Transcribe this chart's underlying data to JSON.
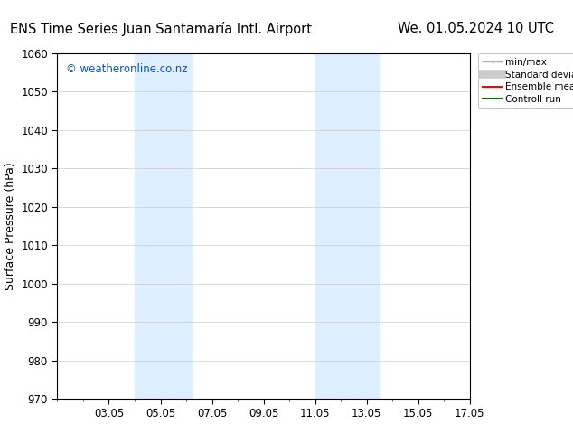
{
  "title_left": "ENS Time Series Juan Santamaría Intl. Airport",
  "title_right": "We. 01.05.2024 10 UTC",
  "ylabel": "Surface Pressure (hPa)",
  "ylim": [
    970,
    1060
  ],
  "yticks": [
    970,
    980,
    990,
    1000,
    1010,
    1020,
    1030,
    1040,
    1050,
    1060
  ],
  "x_num_days": 16,
  "xtick_labels": [
    "03.05",
    "05.05",
    "07.05",
    "09.05",
    "11.05",
    "13.05",
    "15.05",
    "17.05"
  ],
  "xtick_days_offset": [
    2,
    4,
    6,
    8,
    10,
    12,
    14,
    16
  ],
  "shaded_bands": [
    {
      "x_start": 3.0,
      "x_end": 5.2,
      "color": "#ddeeff"
    },
    {
      "x_start": 10.0,
      "x_end": 12.5,
      "color": "#ddeeff"
    }
  ],
  "watermark_text": "© weatheronline.co.nz",
  "watermark_color": "#0055cc",
  "background_color": "#ffffff",
  "legend_items": [
    {
      "label": "min/max",
      "color": "#aaaaaa",
      "lw": 1.5
    },
    {
      "label": "Standard deviation",
      "color": "#cccccc",
      "lw": 7
    },
    {
      "label": "Ensemble mean run",
      "color": "#ff0000",
      "lw": 1.5
    },
    {
      "label": "Controll run",
      "color": "#007700",
      "lw": 1.5
    }
  ],
  "grid_color": "#cccccc",
  "tick_color": "#000000",
  "spine_color": "#000000",
  "title_fontsize": 10.5,
  "axis_label_fontsize": 9,
  "tick_fontsize": 8.5
}
